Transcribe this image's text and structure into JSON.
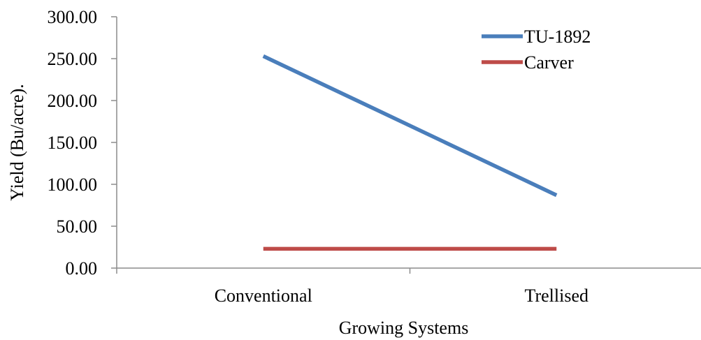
{
  "chart_data": {
    "type": "line",
    "xlabel": "Growing Systems",
    "ylabel": "Yield (Bu/acre).",
    "categories": [
      "Conventional",
      "Trellised"
    ],
    "ylim": [
      0,
      300
    ],
    "yticks": [
      "0.00",
      "50.00",
      "100.00",
      "150.00",
      "200.00",
      "250.00",
      "300.00"
    ],
    "grid": false,
    "legend_position": "top-right",
    "series": [
      {
        "name": "TU-1892",
        "color": "#4a7ebb",
        "values": [
          253,
          87
        ]
      },
      {
        "name": "Carver",
        "color": "#be4b48",
        "values": [
          23,
          23
        ]
      }
    ]
  }
}
